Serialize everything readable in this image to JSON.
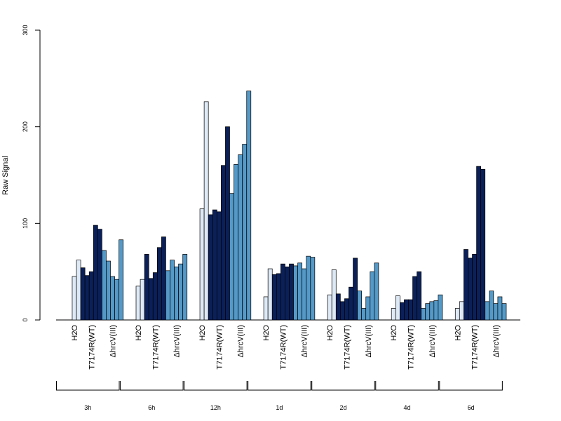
{
  "chart_data": {
    "type": "bar",
    "ylabel": "Raw Signal",
    "ylim": [
      0,
      300
    ],
    "yticks": [
      0,
      100,
      200,
      300
    ],
    "colors": {
      "H2O": "#dee9f6",
      "T7174R(WT)": "#0b2059",
      "ΔhrcV(III)": "#5499c7"
    },
    "condition_labels": [
      "H2O",
      "T7174R(WT)",
      "ΔhrcV(III)"
    ],
    "groups": [
      {
        "time": "3h",
        "H2O": [
          0,
          45,
          62
        ],
        "T7174R(WT)": [
          54,
          46,
          50,
          98,
          94
        ],
        "ΔhrcV(III)": [
          72,
          61,
          45,
          42,
          83
        ]
      },
      {
        "time": "6h",
        "H2O": [
          0,
          35,
          42
        ],
        "T7174R(WT)": [
          68,
          43,
          49,
          75,
          86
        ],
        "ΔhrcV(III)": [
          51,
          62,
          55,
          58,
          68
        ]
      },
      {
        "time": "12h",
        "H2O": [
          0,
          115,
          226
        ],
        "T7174R(WT)": [
          109,
          114,
          112,
          160,
          200
        ],
        "ΔhrcV(III)": [
          131,
          161,
          171,
          182,
          237
        ]
      },
      {
        "time": "1d",
        "H2O": [
          0,
          24,
          53
        ],
        "T7174R(WT)": [
          47,
          48,
          58,
          55,
          58
        ],
        "ΔhrcV(III)": [
          56,
          59,
          53,
          66,
          65
        ]
      },
      {
        "time": "2d",
        "H2O": [
          0,
          26,
          52
        ],
        "T7174R(WT)": [
          27,
          19,
          22,
          34,
          64
        ],
        "ΔhrcV(III)": [
          30,
          12,
          24,
          50,
          59
        ]
      },
      {
        "time": "4d",
        "H2O": [
          0,
          12,
          25
        ],
        "T7174R(WT)": [
          18,
          21,
          21,
          45,
          50
        ],
        "ΔhrcV(III)": [
          12,
          17,
          19,
          20,
          26
        ]
      },
      {
        "time": "6d",
        "H2O": [
          0,
          12,
          19
        ],
        "T7174R(WT)": [
          73,
          64,
          68,
          159,
          156
        ],
        "ΔhrcV(III)": [
          19,
          30,
          17,
          24,
          17
        ]
      }
    ]
  }
}
